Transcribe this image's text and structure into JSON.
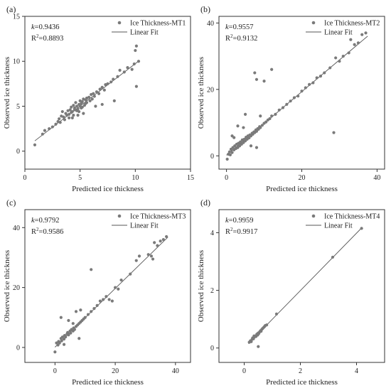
{
  "colors": {
    "point": "#7a7a7a",
    "fit_line": "#555555",
    "axis": "#333333"
  },
  "chart_data": [
    {
      "type": "scatter",
      "panel_label": "(a)",
      "xlabel": "Predicted ice thickness",
      "ylabel": "Observed ice thickness",
      "xlim": [
        0,
        15
      ],
      "ylim": [
        -2,
        15
      ],
      "xticks": [
        0,
        5,
        10,
        15
      ],
      "yticks": [
        0,
        5,
        10,
        15
      ],
      "stat_k": "0.9436",
      "stat_r2": "0.8893",
      "legend": {
        "scatter_label": "Ice Thickness-MT1",
        "line_label": "Linear Fit",
        "position": "top-right"
      },
      "fit": {
        "slope": 0.9436,
        "intercept": 0.3,
        "x_range": [
          0.9,
          10.3
        ]
      },
      "series": [
        {
          "name": "Ice Thickness-MT1",
          "x": [
            0.9,
            1.6,
            1.8,
            2.2,
            2.5,
            2.8,
            3.0,
            3.1,
            3.2,
            3.3,
            3.5,
            3.6,
            3.7,
            3.8,
            3.9,
            4.0,
            4.0,
            4.1,
            4.2,
            4.2,
            4.3,
            4.4,
            4.4,
            4.5,
            4.5,
            4.6,
            4.7,
            4.7,
            4.8,
            4.9,
            4.9,
            5.0,
            5.0,
            5.1,
            5.1,
            5.2,
            5.2,
            5.3,
            5.4,
            5.5,
            5.5,
            5.6,
            5.6,
            5.8,
            5.9,
            6.0,
            6.1,
            6.2,
            6.3,
            6.5,
            6.7,
            6.8,
            7.0,
            7.2,
            7.3,
            7.5,
            7.8,
            8.0,
            8.4,
            8.6,
            9.0,
            9.3,
            9.7,
            9.9,
            10.0,
            10.1,
            10.3,
            3.4,
            4.3,
            4.8,
            5.3,
            5.6,
            6.4,
            7.0,
            8.1,
            10.1
          ],
          "y": [
            0.7,
            1.9,
            2.3,
            2.5,
            2.7,
            3.0,
            3.3,
            3.6,
            3.2,
            3.9,
            3.8,
            3.5,
            4.2,
            4.0,
            4.5,
            4.1,
            3.7,
            4.6,
            4.3,
            4.9,
            4.4,
            4.0,
            5.1,
            4.6,
            4.8,
            5.4,
            4.5,
            5.0,
            4.7,
            5.2,
            4.4,
            5.0,
            5.6,
            4.8,
            5.3,
            5.5,
            4.9,
            5.8,
            5.1,
            5.7,
            5.3,
            5.9,
            5.4,
            6.0,
            5.6,
            6.3,
            5.8,
            6.4,
            6.1,
            6.6,
            6.4,
            6.9,
            7.1,
            6.8,
            7.4,
            7.5,
            7.7,
            8.0,
            8.3,
            9.0,
            8.8,
            9.3,
            9.1,
            9.7,
            11.2,
            11.7,
            10.0,
            4.4,
            3.7,
            4.0,
            4.2,
            5.9,
            5.0,
            5.2,
            5.6,
            7.2
          ]
        }
      ]
    },
    {
      "type": "scatter",
      "panel_label": "(b)",
      "xlabel": "Predicted ice thickness",
      "ylabel": "Observed ice thickness",
      "xlim": [
        -2,
        42
      ],
      "ylim": [
        -4,
        42
      ],
      "xticks": [
        0,
        20,
        40
      ],
      "yticks": [
        0,
        20,
        40
      ],
      "stat_k": "0.9557",
      "stat_r2": "0.9132",
      "legend": {
        "scatter_label": "Ice Thickness-MT2",
        "line_label": "Linear Fit",
        "position": "top-right"
      },
      "fit": {
        "slope": 0.9557,
        "intercept": 0.2,
        "x_range": [
          0,
          37.5
        ]
      },
      "series": [
        {
          "name": "Ice Thickness-MT2",
          "x": [
            0.2,
            0.5,
            0.8,
            1.0,
            1.2,
            1.5,
            1.7,
            2.0,
            2.2,
            2.5,
            2.7,
            3.0,
            3.2,
            3.5,
            3.7,
            4.0,
            4.2,
            4.5,
            4.7,
            5.0,
            5.2,
            5.5,
            5.7,
            6.0,
            6.2,
            6.5,
            6.8,
            7.0,
            7.3,
            7.5,
            7.8,
            8.0,
            8.3,
            8.5,
            8.8,
            9.0,
            9.5,
            10.0,
            10.5,
            11.0,
            11.5,
            12.0,
            13.0,
            14.0,
            15.0,
            16.0,
            17.0,
            18.0,
            19.0,
            20.0,
            21.0,
            22.0,
            23.0,
            24.0,
            25.0,
            26.0,
            27.5,
            29.0,
            30.0,
            31.0,
            32.5,
            33.0,
            34.0,
            35.0,
            36.0,
            37.0,
            1.5,
            3.0,
            4.5,
            6.5,
            8.0,
            9.0,
            12.0,
            7.5,
            8.0,
            10.0,
            28.5,
            2.0,
            5.0
          ],
          "y": [
            -1.0,
            0.5,
            1.2,
            0.3,
            2.0,
            1.0,
            2.5,
            1.8,
            3.0,
            2.2,
            3.5,
            2.5,
            3.8,
            3.0,
            4.2,
            3.5,
            4.8,
            4.0,
            5.0,
            4.5,
            5.6,
            5.0,
            6.0,
            5.4,
            6.3,
            6.0,
            6.8,
            6.5,
            7.2,
            7.0,
            7.8,
            7.4,
            8.2,
            8.0,
            8.8,
            8.5,
            9.2,
            9.8,
            10.2,
            10.8,
            11.2,
            12.0,
            12.5,
            13.8,
            14.5,
            15.5,
            16.5,
            17.5,
            18.0,
            19.5,
            20.5,
            21.5,
            22.0,
            23.5,
            24.0,
            25.0,
            26.5,
            29.5,
            28.5,
            30.0,
            31.0,
            35.0,
            33.5,
            34.0,
            36.5,
            37.0,
            6.0,
            9.0,
            8.5,
            3.0,
            2.5,
            12.0,
            26.0,
            25.0,
            23.0,
            22.5,
            7.0,
            5.5,
            12.5
          ]
        }
      ]
    },
    {
      "type": "scatter",
      "panel_label": "(c)",
      "xlabel": "Predicted ice thickness",
      "ylabel": "Observed ice thickness",
      "xlim": [
        -10,
        45
      ],
      "ylim": [
        -5,
        46
      ],
      "xticks": [
        0,
        20,
        40
      ],
      "yticks": [
        0,
        20,
        40
      ],
      "stat_k": "0.9792",
      "stat_r2": "0.9586",
      "legend": {
        "scatter_label": "Ice Thickness-MT3",
        "line_label": "Linear Fit",
        "position": "top-right"
      },
      "fit": {
        "slope": 0.9792,
        "intercept": 0.1,
        "x_range": [
          0,
          37.5
        ]
      },
      "series": [
        {
          "name": "Ice Thickness-MT3",
          "x": [
            0.0,
            0.5,
            1.0,
            1.2,
            1.5,
            2.0,
            2.2,
            2.5,
            3.0,
            3.2,
            3.5,
            4.0,
            4.2,
            4.5,
            5.0,
            5.2,
            5.5,
            6.0,
            6.2,
            6.5,
            7.0,
            7.5,
            8.0,
            8.5,
            9.0,
            9.5,
            10.0,
            11.0,
            12.0,
            13.0,
            14.0,
            15.0,
            16.0,
            17.0,
            18.0,
            20.0,
            21.0,
            22.0,
            25.0,
            27.0,
            28.0,
            31.0,
            32.0,
            33.0,
            34.0,
            35.0,
            36.0,
            37.0,
            2.0,
            3.0,
            4.5,
            6.0,
            7.0,
            8.0,
            8.5,
            12.0,
            19.0,
            32.5
          ],
          "y": [
            -1.5,
            1.5,
            0.8,
            2.0,
            1.5,
            3.0,
            2.2,
            3.5,
            2.8,
            4.0,
            3.5,
            4.5,
            5.0,
            4.2,
            5.5,
            4.8,
            6.0,
            5.5,
            6.5,
            6.0,
            7.0,
            7.5,
            8.0,
            8.5,
            9.0,
            9.5,
            10.0,
            11.0,
            12.0,
            13.0,
            14.0,
            15.5,
            16.0,
            17.0,
            16.0,
            20.0,
            19.5,
            22.5,
            24.5,
            29.0,
            30.5,
            31.0,
            30.5,
            35.0,
            34.0,
            35.5,
            36.0,
            37.0,
            10.0,
            1.0,
            9.0,
            8.0,
            12.0,
            3.0,
            12.5,
            26.0,
            15.5,
            29.5
          ]
        }
      ]
    },
    {
      "type": "scatter",
      "panel_label": "(d)",
      "xlabel": "Predicted ice thickness",
      "ylabel": "Observed ice thickness",
      "xlim": [
        -0.9,
        5
      ],
      "ylim": [
        -0.5,
        4.8
      ],
      "xticks": [
        0,
        2,
        4
      ],
      "yticks": [
        0,
        2,
        4
      ],
      "stat_k": "0.9959",
      "stat_r2": "0.9917",
      "legend": {
        "scatter_label": "Ice Thickness-MT4",
        "line_label": "Linear Fit",
        "position": "top-right"
      },
      "fit": {
        "slope": 0.9959,
        "intercept": 0.0,
        "x_range": [
          0.15,
          4.2
        ]
      },
      "series": [
        {
          "name": "Ice Thickness-MT4",
          "x": [
            0.18,
            0.22,
            0.25,
            0.28,
            0.3,
            0.33,
            0.36,
            0.4,
            0.42,
            0.45,
            0.48,
            0.5,
            0.52,
            0.55,
            0.58,
            0.6,
            0.63,
            0.66,
            0.7,
            0.73,
            0.75,
            0.8,
            1.15,
            3.15,
            4.18,
            0.5,
            0.35
          ],
          "y": [
            0.2,
            0.25,
            0.22,
            0.3,
            0.35,
            0.32,
            0.38,
            0.42,
            0.4,
            0.48,
            0.45,
            0.52,
            0.5,
            0.56,
            0.6,
            0.58,
            0.65,
            0.68,
            0.72,
            0.75,
            0.78,
            0.8,
            1.18,
            3.15,
            4.15,
            0.05,
            0.42
          ]
        }
      ]
    }
  ]
}
